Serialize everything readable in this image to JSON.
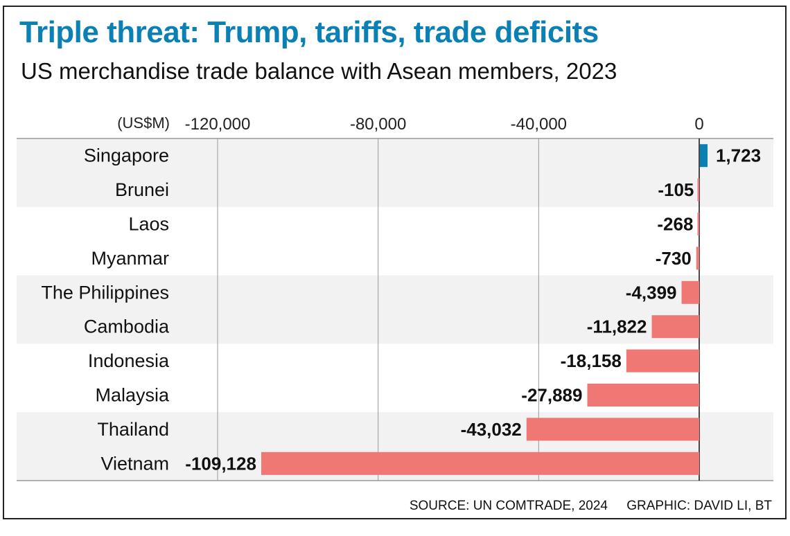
{
  "chart_data": {
    "type": "bar",
    "orientation": "horizontal",
    "title": "Triple threat: Trump, tariffs, trade deficits",
    "subtitle": "US merchandise trade balance with Asean members, 2023",
    "unit_label": "(US$M)",
    "xlabel": "",
    "ylabel": "",
    "xlim": [
      -120000,
      0
    ],
    "x_ticks": [
      -120000,
      -80000,
      -40000,
      0
    ],
    "x_tick_labels": [
      "-120,000",
      "-80,000",
      "-40,000",
      "0"
    ],
    "grid": true,
    "categories": [
      "Singapore",
      "Brunei",
      "Laos",
      "Myanmar",
      "The Philippines",
      "Cambodia",
      "Indonesia",
      "Malaysia",
      "Thailand",
      "Vietnam"
    ],
    "values": [
      1723,
      -105,
      -268,
      -730,
      -4399,
      -11822,
      -18158,
      -27889,
      -43032,
      -109128
    ],
    "value_labels": [
      "1,723",
      "-105",
      "-268",
      "-730",
      "-4,399",
      "-11,822",
      "-18,158",
      "-27,889",
      "-43,032",
      "-109,128"
    ],
    "colors": {
      "positive": "#0a80b4",
      "negative": "#f07874",
      "band": "#f2f2f2",
      "title": "#0a80b4"
    }
  },
  "footer": {
    "source": "SOURCE: UN COMTRADE, 2024",
    "credit": "GRAPHIC: DAVID LI, BT"
  }
}
